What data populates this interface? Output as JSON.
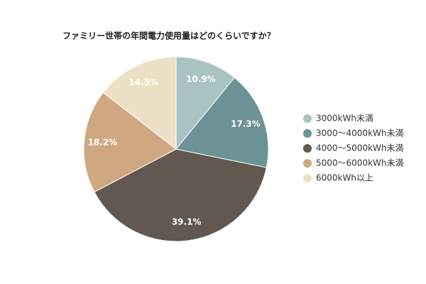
{
  "chart_data": {
    "type": "pie",
    "title": "ファミリー世帯の年間電力使用量はどのくらいですか？",
    "categories": [
      "3000kWh未満",
      "3000〜4000kWh未満",
      "4000〜5000kWh未満",
      "5000〜6000kWh未満",
      "6000kWh以上"
    ],
    "values": [
      10.9,
      17.3,
      39.1,
      18.2,
      14.5
    ],
    "value_labels": [
      "10.9%",
      "17.3%",
      "39.1%",
      "18.2%",
      "14.5%"
    ],
    "colors": [
      "#a9c3c3",
      "#6b9297",
      "#625850",
      "#cfa882",
      "#ede0c6"
    ],
    "legend": "right"
  }
}
